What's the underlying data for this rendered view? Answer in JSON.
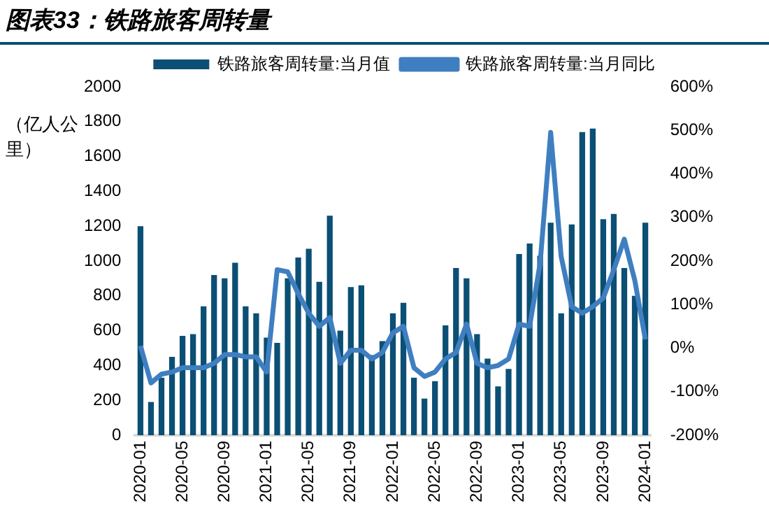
{
  "chart_data": {
    "type": "bar",
    "title": "图表33：铁路旅客周转量",
    "ylabel": "（亿人公里）",
    "categories": [
      "2020-01",
      null,
      null,
      null,
      "2020-05",
      null,
      null,
      null,
      "2020-09",
      null,
      null,
      null,
      "2021-01",
      null,
      null,
      null,
      "2021-05",
      null,
      null,
      null,
      "2021-09",
      null,
      null,
      null,
      "2022-01",
      null,
      null,
      null,
      "2022-05",
      null,
      null,
      null,
      "2022-09",
      null,
      null,
      null,
      "2023-01",
      null,
      null,
      null,
      "2023-05",
      null,
      null,
      null,
      "2023-09",
      null,
      null,
      null,
      "2024-01"
    ],
    "series": [
      {
        "name": "铁路旅客周转量:当月值",
        "color": "#0b4f75",
        "values": [
          1200,
          190,
          330,
          450,
          570,
          580,
          740,
          920,
          900,
          990,
          740,
          700,
          560,
          530,
          900,
          1020,
          1070,
          880,
          1260,
          600,
          850,
          860,
          460,
          540,
          700,
          760,
          330,
          210,
          310,
          630,
          960,
          900,
          580,
          440,
          280,
          380,
          1040,
          1100,
          1030,
          1220,
          700,
          1210,
          1740,
          1760,
          1240,
          1270,
          960,
          800,
          1220
        ]
      },
      {
        "name": "铁路旅客周转量:当月同比",
        "type": "line",
        "axis": "y2",
        "color": "#3f7fc1",
        "values": [
          5,
          -80,
          -60,
          -55,
          -45,
          -45,
          -45,
          -35,
          -15,
          -15,
          -20,
          -20,
          -55,
          180,
          175,
          125,
          80,
          50,
          70,
          -35,
          -5,
          -5,
          -25,
          -10,
          35,
          50,
          -45,
          -65,
          -55,
          -25,
          -10,
          55,
          -35,
          -45,
          -40,
          -25,
          55,
          50,
          195,
          495,
          210,
          95,
          80,
          95,
          115,
          180,
          250,
          155,
          20
        ]
      }
    ],
    "ylim": [
      0,
      2000
    ],
    "yticks": [
      0,
      200,
      400,
      600,
      800,
      1000,
      1200,
      1400,
      1600,
      1800,
      2000
    ],
    "y2lim": [
      -200,
      600
    ],
    "y2ticks": [
      {
        "value": -200,
        "label": "-200%"
      },
      {
        "value": -100,
        "label": "-100%"
      },
      {
        "value": 0,
        "label": "0%"
      },
      {
        "value": 100,
        "label": "100%"
      },
      {
        "value": 200,
        "label": "200%"
      },
      {
        "value": 300,
        "label": "300%"
      },
      {
        "value": 400,
        "label": "400%"
      },
      {
        "value": 500,
        "label": "500%"
      },
      {
        "value": 600,
        "label": "600%"
      }
    ],
    "grid": false,
    "legend": "top",
    "marker": "none",
    "line_style": "solid"
  }
}
